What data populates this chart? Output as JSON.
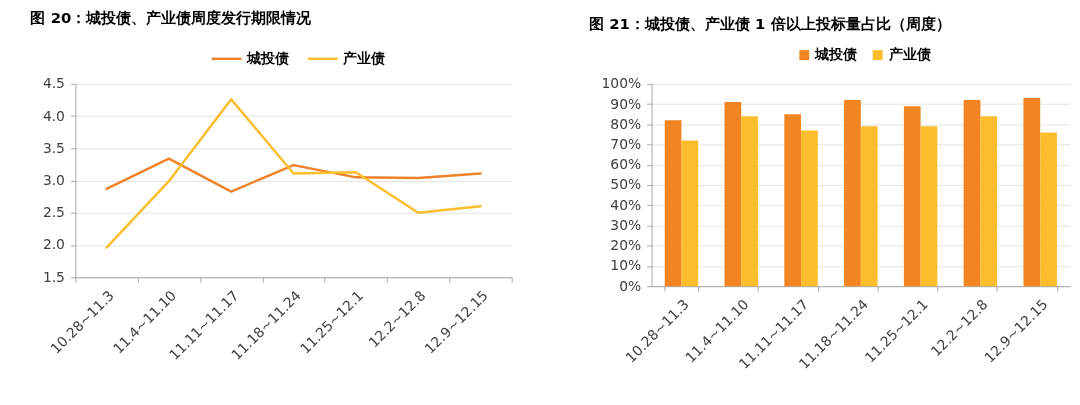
{
  "chart_data": [
    {
      "type": "line",
      "title": "图 20：城投债、产业债周度发行期限情况",
      "categories": [
        "10.28~11.3",
        "11.4~11.10",
        "11.11~11.17",
        "11.18~11.24",
        "11.25~12.1",
        "12.2~12.8",
        "12.9~12.15"
      ],
      "series": [
        {
          "name": "城投债",
          "color": "#f0832a",
          "values": [
            2.87,
            3.34,
            2.83,
            3.24,
            3.05,
            3.04,
            3.11
          ]
        },
        {
          "name": "产业债",
          "color": "#fbbd2c",
          "values": [
            1.96,
            2.99,
            4.26,
            3.11,
            3.13,
            2.5,
            2.6
          ]
        }
      ],
      "ylim": [
        1.5,
        4.5
      ],
      "yticks": [
        1.5,
        {
          "value": 2,
          "label": "2.0"
        },
        2.5,
        {
          "value": 3,
          "label": "3.0"
        },
        3.5,
        {
          "value": 4,
          "label": "4.0"
        },
        4.5
      ],
      "grid": "y",
      "legend": "top",
      "line_style": "solid"
    },
    {
      "type": "bar",
      "title": "图 21：城投债、产业债 1 倍以上投标量占比（周度）",
      "categories": [
        "10.28~11.3",
        "11.4~11.10",
        "11.11~11.17",
        "11.18~11.24",
        "11.25~12.1",
        "12.2~12.8",
        "12.9~12.15"
      ],
      "series": [
        {
          "name": "城投债",
          "color": "#f28522",
          "values": [
            82,
            91,
            85,
            92,
            89,
            92,
            93
          ]
        },
        {
          "name": "产业债",
          "color": "#fbbd2c",
          "values": [
            72,
            84,
            77,
            79,
            79,
            84,
            76
          ]
        }
      ],
      "ylim": [
        0,
        100
      ],
      "yticks": [
        {
          "value": 0,
          "label": "0%"
        },
        {
          "value": 10,
          "label": "10%"
        },
        {
          "value": 20,
          "label": "20%"
        },
        {
          "value": 30,
          "label": "30%"
        },
        {
          "value": 40,
          "label": "40%"
        },
        {
          "value": 50,
          "label": "50%"
        },
        {
          "value": 60,
          "label": "60%"
        },
        {
          "value": 70,
          "label": "70%"
        },
        {
          "value": 80,
          "label": "80%"
        },
        {
          "value": 90,
          "label": "90%"
        },
        {
          "value": 100,
          "label": "100%"
        }
      ],
      "grid": "y",
      "legend": "top"
    }
  ]
}
